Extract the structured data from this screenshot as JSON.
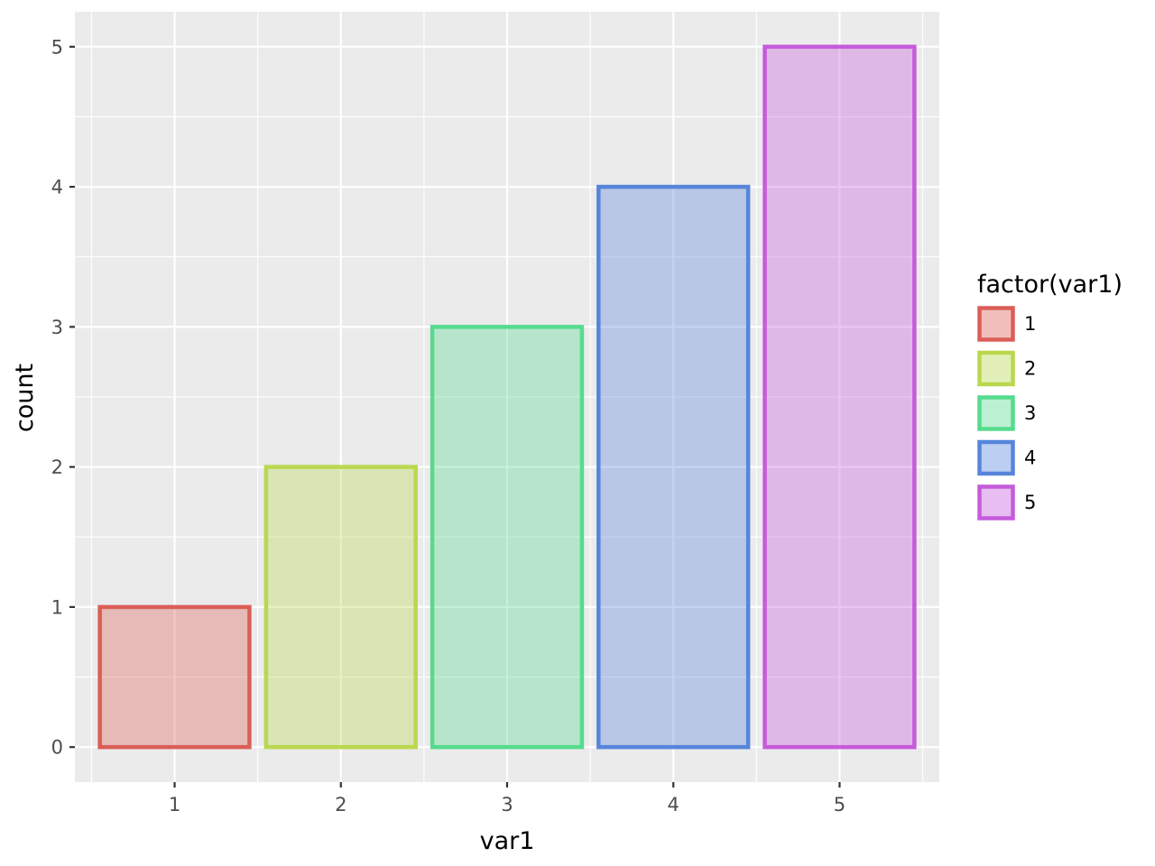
{
  "chart_data": {
    "type": "bar",
    "categories": [
      "1",
      "2",
      "3",
      "4",
      "5"
    ],
    "values": [
      1,
      2,
      3,
      4,
      5
    ],
    "xlabel": "var1",
    "ylabel": "count",
    "ylim": [
      -0.25,
      5.25
    ],
    "yticks": [
      "0",
      "1",
      "2",
      "3",
      "4",
      "5"
    ],
    "grid": true,
    "background": "#ebebeb",
    "legend": {
      "title": "factor(var1)",
      "position": "right",
      "entries": [
        "1",
        "2",
        "3",
        "4",
        "5"
      ]
    },
    "colors": {
      "outline": [
        "#db5e56",
        "#b9d84d",
        "#56db8e",
        "#5785db",
        "#c65bdb"
      ],
      "fill": [
        "#e3b3af",
        "#d7e3ae",
        "#b0e4c8",
        "#aec2e5",
        "#dcaee4"
      ]
    }
  }
}
